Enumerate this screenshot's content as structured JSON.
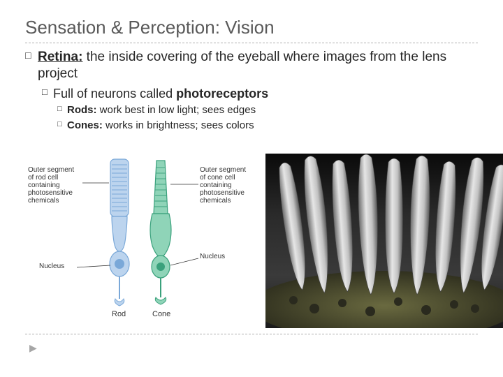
{
  "title": "Sensation & Perception: Vision",
  "bullets": {
    "retina": {
      "term": "Retina:",
      "text": " the inside covering of the eyeball where images from the lens project"
    },
    "full": {
      "term": "Full",
      "text_before": " ",
      "text_mid": " of neurons called ",
      "bold_end": "photoreceptors"
    },
    "rods": {
      "term": "Rods:",
      "text": " work best in low light; sees edges"
    },
    "cones": {
      "term": "Cones:",
      "text": " works in brightness; sees colors"
    }
  },
  "diagram": {
    "rod_color": "#7aa8d8",
    "rod_fill": "#bcd4ee",
    "cone_color": "#3aa17c",
    "cone_fill": "#8fd4b8",
    "label_rod_outer": "Outer segment\nof rod cell\ncontaining\nphotosensitive\nchemicals",
    "label_cone_outer": "Outer segment\nof cone cell\ncontaining\nphotosensitive\nchemicals",
    "label_nucleus_left": "Nucleus",
    "label_nucleus_right": "Nucleus",
    "caption_rod": "Rod",
    "caption_cone": "Cone"
  },
  "photo": {
    "bg_dark": "#1a1a1a",
    "bg_mid": "#4a4a4a",
    "cell_light": "#d8d8d8",
    "cell_shadow": "#888888",
    "base_dark": "#2a2a2a",
    "base_tex": "#55553a"
  },
  "colors": {
    "title_color": "#5a5a5a",
    "text_color": "#262626",
    "divider_color": "#b0b0b0",
    "background": "#ffffff"
  }
}
